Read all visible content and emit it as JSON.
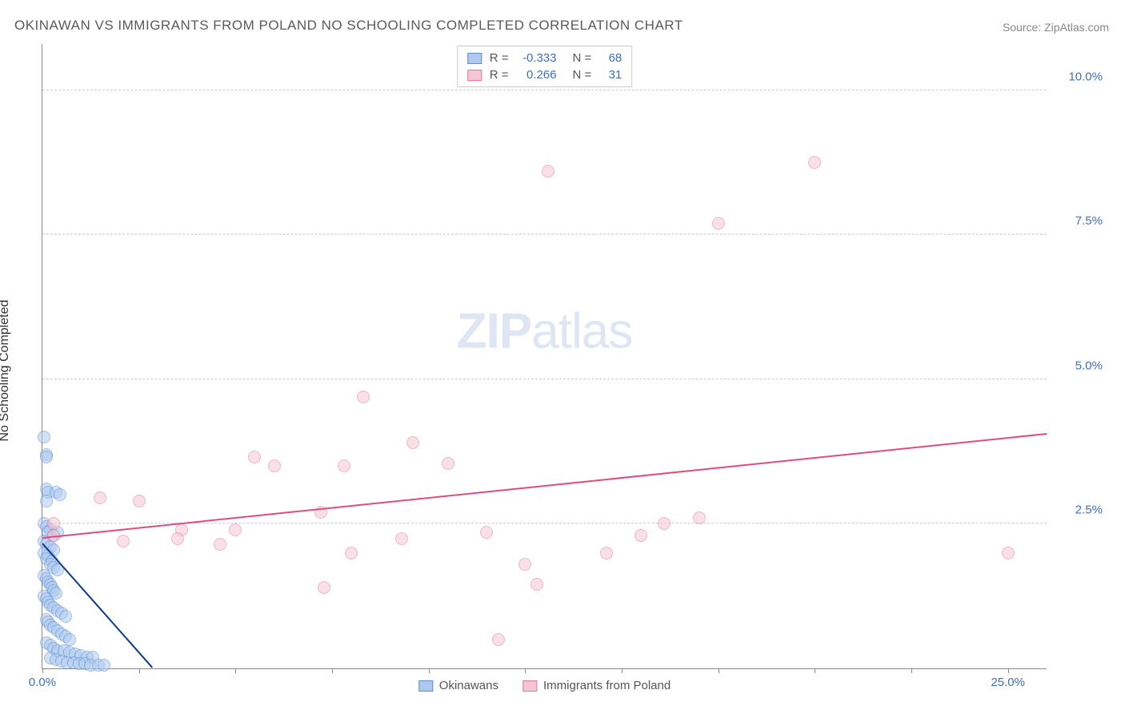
{
  "title": "OKINAWAN VS IMMIGRANTS FROM POLAND NO SCHOOLING COMPLETED CORRELATION CHART",
  "source": "Source: ZipAtlas.com",
  "watermark": {
    "bold": "ZIP",
    "light": "atlas"
  },
  "chart": {
    "type": "scatter",
    "background_color": "#ffffff",
    "grid_color": "#cccccc",
    "axis_color": "#888888",
    "y_axis_title": "No Schooling Completed",
    "xlim": [
      0,
      26
    ],
    "ylim": [
      0,
      10.8
    ],
    "x_ticks": [
      0,
      2.5,
      5,
      7.5,
      10,
      12.5,
      15,
      17.5,
      20,
      22.5,
      25
    ],
    "x_tick_labels": {
      "0": "0.0%",
      "25": "25.0%"
    },
    "y_ticks": [
      0,
      2.5,
      5,
      7.5,
      10
    ],
    "y_tick_labels": {
      "2.5": "2.5%",
      "5": "5.0%",
      "7.5": "7.5%",
      "10": "10.0%"
    },
    "marker_radius": 8,
    "marker_stroke_width": 1.5,
    "series": [
      {
        "name": "Okinawans",
        "fill": "#aec9ed",
        "stroke": "#5a8fd6",
        "fill_opacity": 0.55,
        "R": "-0.333",
        "N": "68",
        "trend": {
          "x1": 0.0,
          "y1": 2.15,
          "x2": 2.85,
          "y2": 0.0,
          "color": "#0a3a8f",
          "width": 2
        },
        "points": [
          [
            0.05,
            4.0
          ],
          [
            0.1,
            3.7
          ],
          [
            0.1,
            3.65
          ],
          [
            0.1,
            3.1
          ],
          [
            0.15,
            3.05
          ],
          [
            0.1,
            2.9
          ],
          [
            0.35,
            3.05
          ],
          [
            0.45,
            3.0
          ],
          [
            0.05,
            2.5
          ],
          [
            0.1,
            2.45
          ],
          [
            0.2,
            2.4
          ],
          [
            0.15,
            2.35
          ],
          [
            0.3,
            2.3
          ],
          [
            0.4,
            2.35
          ],
          [
            0.05,
            2.2
          ],
          [
            0.1,
            2.15
          ],
          [
            0.2,
            2.1
          ],
          [
            0.3,
            2.05
          ],
          [
            0.05,
            2.0
          ],
          [
            0.15,
            1.95
          ],
          [
            0.1,
            1.9
          ],
          [
            0.25,
            1.85
          ],
          [
            0.2,
            1.8
          ],
          [
            0.3,
            1.75
          ],
          [
            0.4,
            1.7
          ],
          [
            0.05,
            1.6
          ],
          [
            0.1,
            1.55
          ],
          [
            0.15,
            1.5
          ],
          [
            0.2,
            1.45
          ],
          [
            0.25,
            1.4
          ],
          [
            0.3,
            1.35
          ],
          [
            0.35,
            1.3
          ],
          [
            0.05,
            1.25
          ],
          [
            0.1,
            1.2
          ],
          [
            0.15,
            1.15
          ],
          [
            0.2,
            1.1
          ],
          [
            0.3,
            1.05
          ],
          [
            0.4,
            1.0
          ],
          [
            0.5,
            0.95
          ],
          [
            0.6,
            0.9
          ],
          [
            0.1,
            0.85
          ],
          [
            0.15,
            0.8
          ],
          [
            0.2,
            0.75
          ],
          [
            0.3,
            0.7
          ],
          [
            0.4,
            0.65
          ],
          [
            0.5,
            0.6
          ],
          [
            0.6,
            0.55
          ],
          [
            0.7,
            0.5
          ],
          [
            0.1,
            0.45
          ],
          [
            0.2,
            0.4
          ],
          [
            0.3,
            0.35
          ],
          [
            0.4,
            0.3
          ],
          [
            0.55,
            0.3
          ],
          [
            0.7,
            0.28
          ],
          [
            0.85,
            0.25
          ],
          [
            1.0,
            0.22
          ],
          [
            1.15,
            0.2
          ],
          [
            1.3,
            0.2
          ],
          [
            0.2,
            0.18
          ],
          [
            0.35,
            0.15
          ],
          [
            0.5,
            0.12
          ],
          [
            0.65,
            0.1
          ],
          [
            0.8,
            0.1
          ],
          [
            0.95,
            0.08
          ],
          [
            1.1,
            0.08
          ],
          [
            1.25,
            0.05
          ],
          [
            1.45,
            0.05
          ],
          [
            1.6,
            0.05
          ]
        ]
      },
      {
        "name": "Immigrants from Poland",
        "fill": "#f5c5d3",
        "stroke": "#e77a9a",
        "fill_opacity": 0.55,
        "R": "0.266",
        "N": "31",
        "trend": {
          "x1": 0.0,
          "y1": 2.25,
          "x2": 26.0,
          "y2": 4.05,
          "color": "#e04d7b",
          "width": 2
        },
        "points": [
          [
            0.3,
            2.5
          ],
          [
            0.3,
            2.3
          ],
          [
            1.5,
            2.95
          ],
          [
            2.1,
            2.2
          ],
          [
            2.5,
            2.9
          ],
          [
            3.6,
            2.4
          ],
          [
            3.5,
            2.25
          ],
          [
            4.6,
            2.15
          ],
          [
            5.0,
            2.4
          ],
          [
            5.5,
            3.65
          ],
          [
            6.0,
            3.5
          ],
          [
            7.2,
            2.7
          ],
          [
            7.3,
            1.4
          ],
          [
            7.8,
            3.5
          ],
          [
            8.0,
            2.0
          ],
          [
            8.3,
            4.7
          ],
          [
            9.3,
            2.25
          ],
          [
            9.6,
            3.9
          ],
          [
            10.5,
            3.55
          ],
          [
            11.5,
            2.35
          ],
          [
            11.8,
            0.5
          ],
          [
            12.5,
            1.8
          ],
          [
            12.8,
            1.45
          ],
          [
            13.1,
            8.6
          ],
          [
            14.6,
            2.0
          ],
          [
            15.5,
            2.3
          ],
          [
            16.1,
            2.5
          ],
          [
            17.0,
            2.6
          ],
          [
            17.5,
            7.7
          ],
          [
            20.0,
            8.75
          ],
          [
            25.0,
            2.0
          ]
        ]
      }
    ],
    "stats_legend_labels": {
      "R": "R =",
      "N": "N ="
    },
    "tick_label_color": "#3b6fc9",
    "title_color": "#5a5a5a",
    "label_fontsize": 15,
    "title_fontsize": 17
  }
}
